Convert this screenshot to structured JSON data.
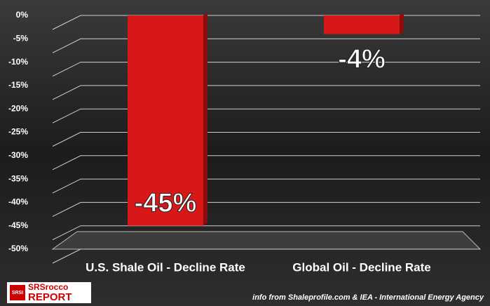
{
  "chart_data": {
    "type": "bar",
    "categories": [
      "U.S. Shale Oil -  Decline Rate",
      "Global Oil - Decline Rate"
    ],
    "values": [
      -45,
      -4
    ],
    "value_labels": [
      "-45%",
      "-4%"
    ],
    "color": "#d81818",
    "ylim": [
      -50,
      0
    ],
    "yticks": [
      {
        "value": 0,
        "label": "0%"
      },
      {
        "value": -5,
        "label": "-5%"
      },
      {
        "value": -10,
        "label": "-10%"
      },
      {
        "value": -15,
        "label": "-15%"
      },
      {
        "value": -20,
        "label": "-20%"
      },
      {
        "value": -25,
        "label": "-25%"
      },
      {
        "value": -30,
        "label": "-30%"
      },
      {
        "value": -35,
        "label": "-35%"
      },
      {
        "value": -40,
        "label": "-40%"
      },
      {
        "value": -45,
        "label": "-45%"
      },
      {
        "value": -50,
        "label": "-50%"
      }
    ],
    "grid": true,
    "source": "info from Shaleprofile.com & IEA - International Energy Agency",
    "logo": {
      "badge": "SRSI",
      "top": "SRSrocco",
      "bottom": "REPORT"
    }
  }
}
